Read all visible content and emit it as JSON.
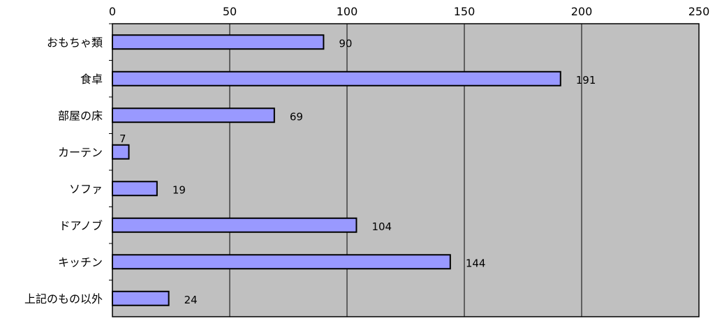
{
  "chart_data": {
    "type": "bar",
    "orientation": "horizontal",
    "categories": [
      "おもちゃ類",
      "食卓",
      "部屋の床",
      "カーテン",
      "ソファ",
      "ドアノブ",
      "キッチン",
      "上記のもの以外"
    ],
    "series": [
      {
        "values": [
          90,
          191,
          69,
          7,
          19,
          104,
          144,
          24
        ]
      }
    ],
    "data_labels": [
      "90",
      "191",
      "69",
      "7",
      "19",
      "104",
      "144",
      "24"
    ],
    "xlim": [
      0,
      250
    ],
    "x_ticks": [
      0,
      50,
      100,
      150,
      200,
      250
    ],
    "x_tick_labels": [
      "0",
      "50",
      "100",
      "150",
      "200",
      "250"
    ],
    "xaxis_position": "top",
    "grid": true,
    "colors": {
      "bar_fill": "#9999ff",
      "bar_stroke": "#000000",
      "plot_background": "#c0c0c0",
      "gridline": "#000000"
    }
  }
}
